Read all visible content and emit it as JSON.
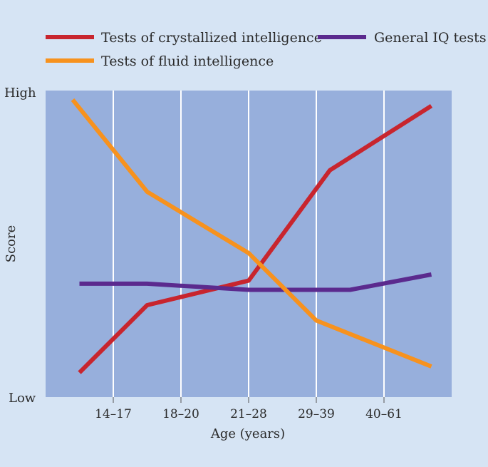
{
  "chart_data": {
    "type": "line",
    "title": "",
    "xlabel": "Age (years)",
    "ylabel": "Score",
    "y_tick_labels": {
      "high": "High",
      "low": "Low"
    },
    "ylim": [
      0,
      100
    ],
    "categories": [
      "14–17",
      "18–20",
      "21–28",
      "29–39",
      "40–61"
    ],
    "grid": true,
    "legend_position": "top",
    "series": [
      {
        "name": "Tests of crystallized intelligence",
        "color": "#c8252e",
        "x": [
          0.5,
          1.5,
          3.0,
          4.2,
          5.7
        ],
        "values": [
          8,
          30,
          38,
          74,
          95
        ]
      },
      {
        "name": "General IQ tests",
        "color": "#5b2a8e",
        "x": [
          0.5,
          1.5,
          3.0,
          4.2,
          4.5,
          5.7
        ],
        "values": [
          37,
          37,
          35,
          35,
          35,
          40
        ]
      },
      {
        "name": "Tests of fluid intelligence",
        "color": "#f7921e",
        "x": [
          0.4,
          1.5,
          3.0,
          4.0,
          5.7
        ],
        "values": [
          97,
          67,
          47,
          25,
          10
        ]
      }
    ]
  }
}
